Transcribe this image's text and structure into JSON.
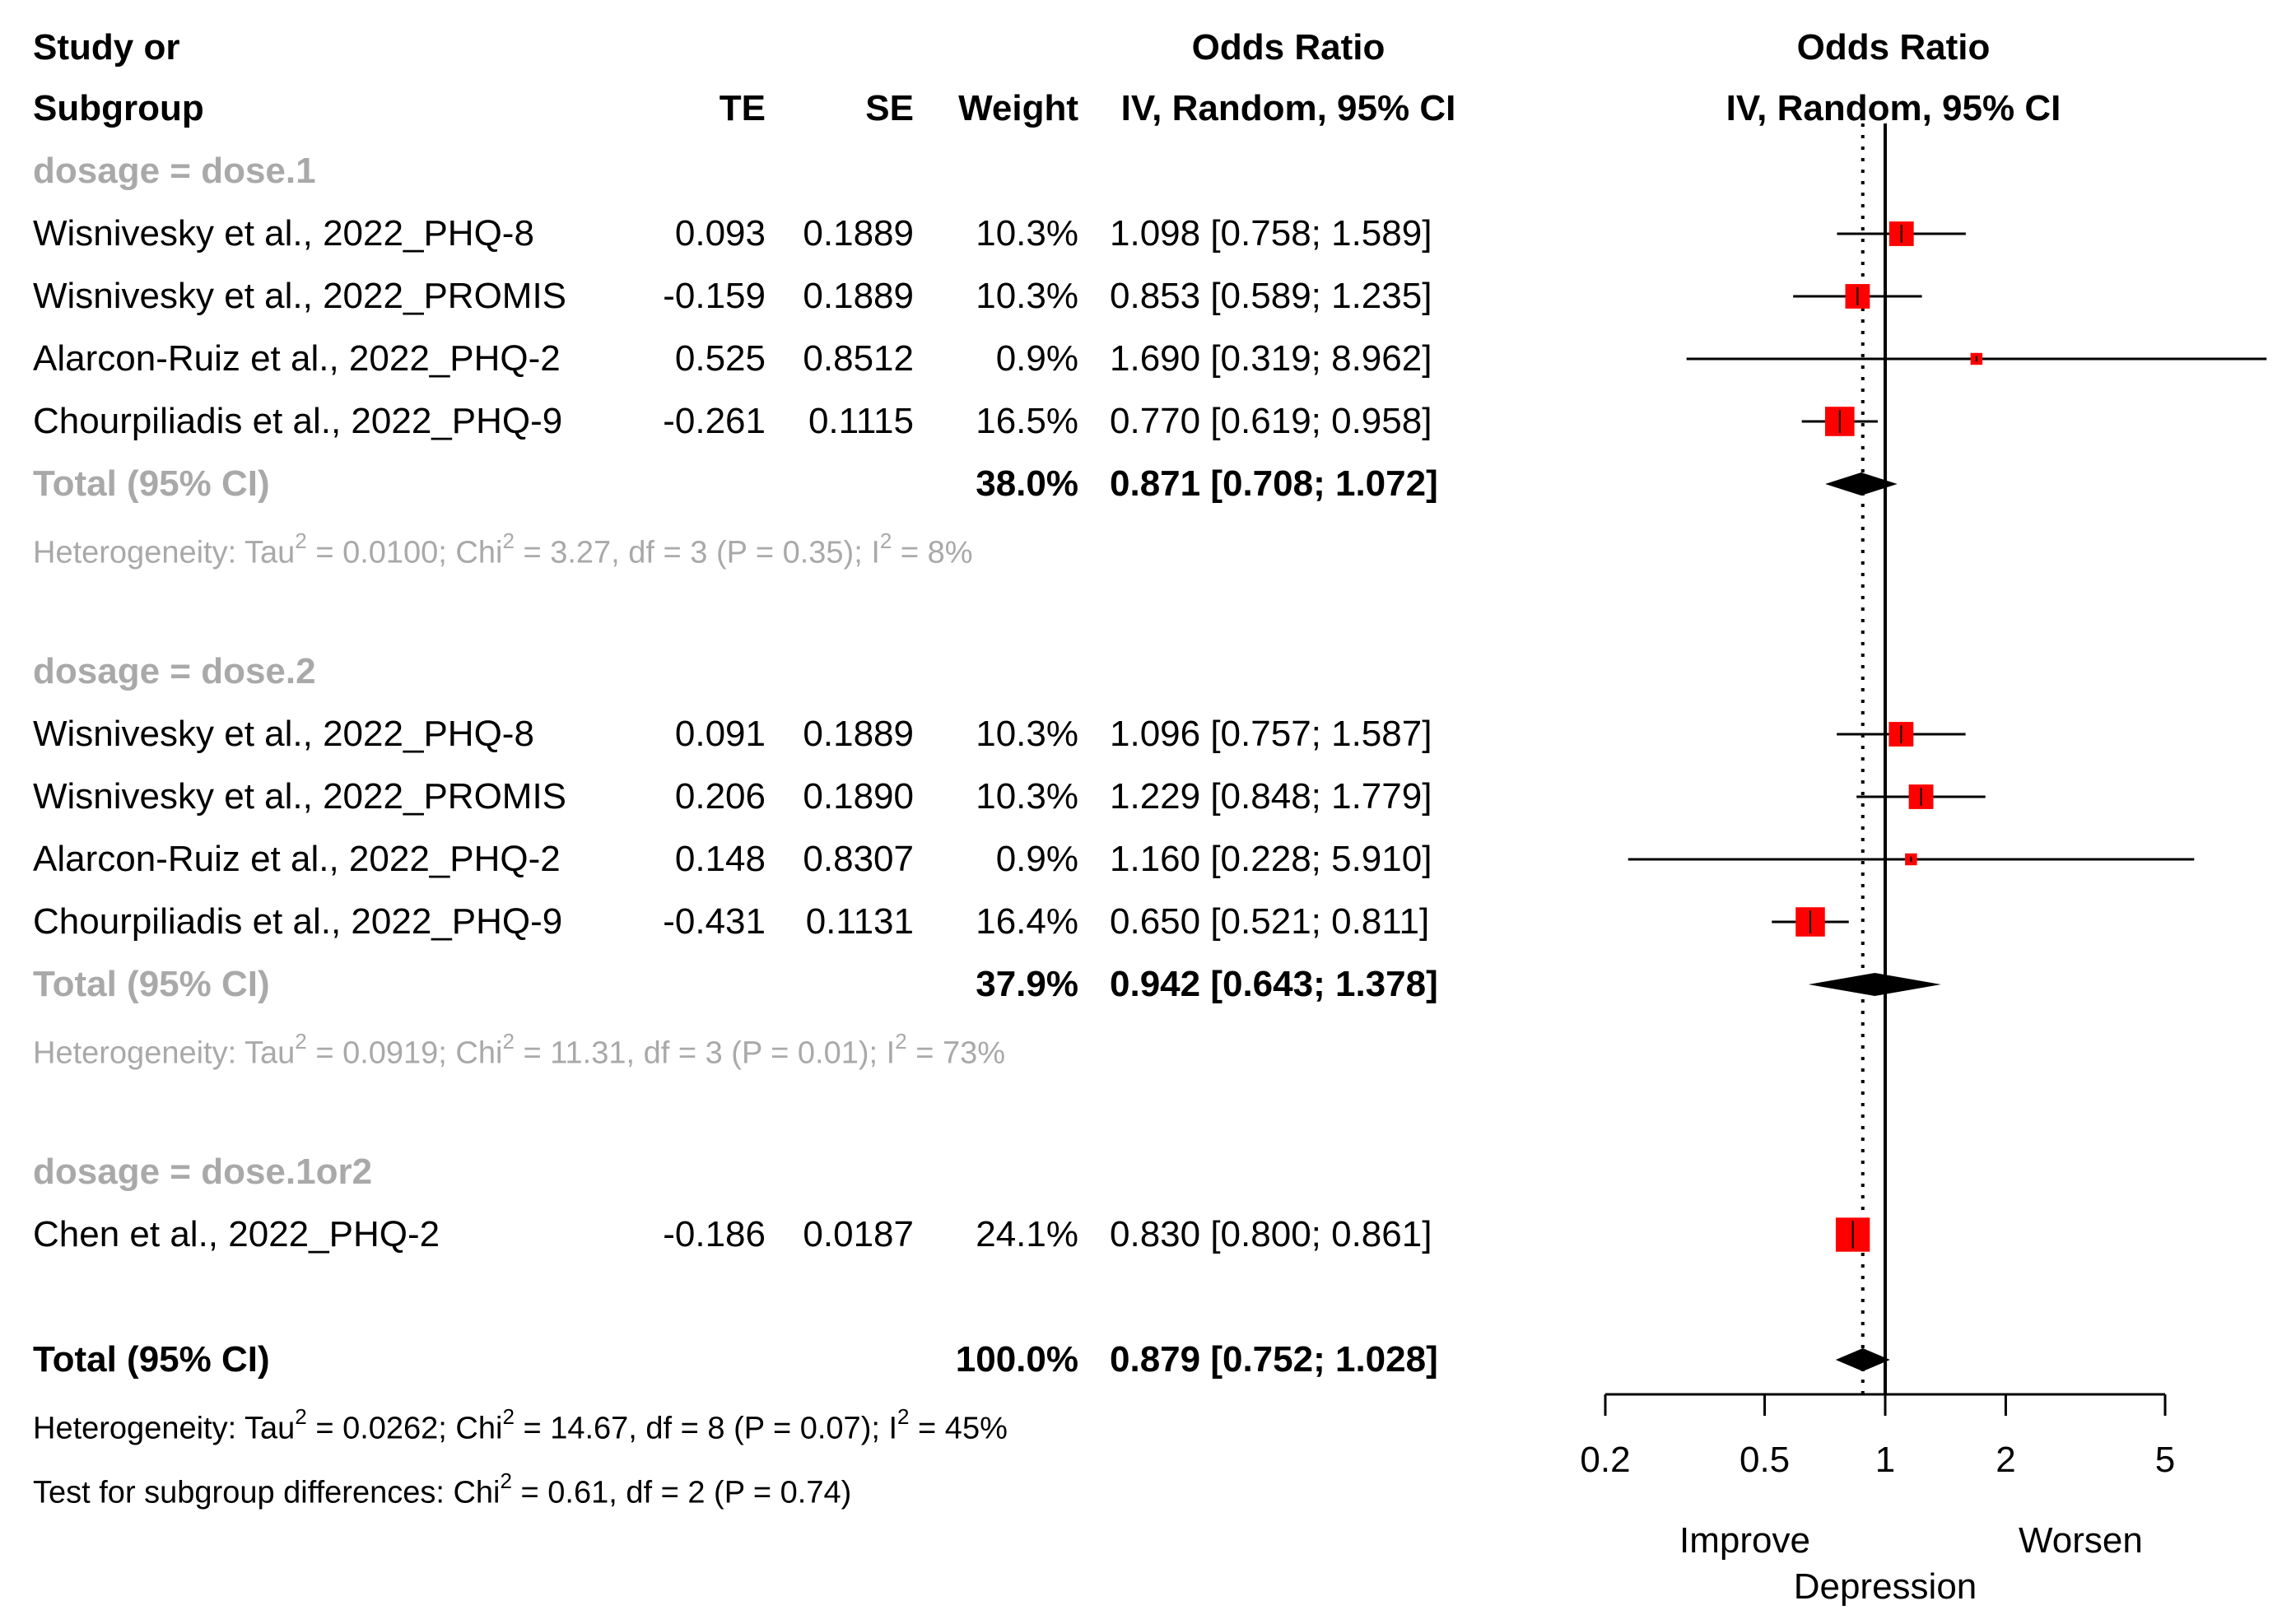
{
  "header": {
    "study_line1": "Study or",
    "study_line2": "Subgroup",
    "te": "TE",
    "se": "SE",
    "weight": "Weight",
    "or_line1": "Odds Ratio",
    "or_line2": "IV, Random, 95% CI",
    "plot_line1": "Odds Ratio",
    "plot_line2": "IV, Random, 95% CI"
  },
  "groups": [
    {
      "label": "dosage = dose.1",
      "studies": [
        {
          "name": "Wisnivesky et al., 2022_PHQ-8",
          "te": "0.093",
          "se": "0.1889",
          "weight": "10.3%",
          "ci": "1.098 [0.758; 1.589]"
        },
        {
          "name": "Wisnivesky et al., 2022_PROMIS",
          "te": "-0.159",
          "se": "0.1889",
          "weight": "10.3%",
          "ci": "0.853 [0.589; 1.235]"
        },
        {
          "name": "Alarcon-Ruiz et al., 2022_PHQ-2",
          "te": "0.525",
          "se": "0.8512",
          "weight": "0.9%",
          "ci": "1.690 [0.319; 8.962]"
        },
        {
          "name": "Chourpiliadis et al., 2022_PHQ-9",
          "te": "-0.261",
          "se": "0.1115",
          "weight": "16.5%",
          "ci": "0.770 [0.619; 0.958]"
        }
      ],
      "total": {
        "label": "Total (95% CI)",
        "weight": "38.0%",
        "ci": "0.871 [0.708; 1.072]"
      },
      "het": {
        "p1": "Heterogeneity: Tau",
        "s1": "2",
        "p2": " = 0.0100; Chi",
        "s2": "2",
        "p3": " = 3.27, df = 3 (P = 0.35); I",
        "s3": "2",
        "p4": " = 8%"
      }
    },
    {
      "label": "dosage = dose.2",
      "studies": [
        {
          "name": "Wisnivesky et al., 2022_PHQ-8",
          "te": "0.091",
          "se": "0.1889",
          "weight": "10.3%",
          "ci": "1.096 [0.757; 1.587]"
        },
        {
          "name": "Wisnivesky et al., 2022_PROMIS",
          "te": "0.206",
          "se": "0.1890",
          "weight": "10.3%",
          "ci": "1.229 [0.848; 1.779]"
        },
        {
          "name": "Alarcon-Ruiz et al., 2022_PHQ-2",
          "te": "0.148",
          "se": "0.8307",
          "weight": "0.9%",
          "ci": "1.160 [0.228; 5.910]"
        },
        {
          "name": "Chourpiliadis et al., 2022_PHQ-9",
          "te": "-0.431",
          "se": "0.1131",
          "weight": "16.4%",
          "ci": "0.650 [0.521; 0.811]"
        }
      ],
      "total": {
        "label": "Total (95% CI)",
        "weight": "37.9%",
        "ci": "0.942 [0.643; 1.378]"
      },
      "het": {
        "p1": "Heterogeneity: Tau",
        "s1": "2",
        "p2": " = 0.0919; Chi",
        "s2": "2",
        "p3": " = 11.31, df = 3 (P = 0.01); I",
        "s3": "2",
        "p4": " = 73%"
      }
    },
    {
      "label": "dosage = dose.1or2",
      "studies": [
        {
          "name": "Chen et al., 2022_PHQ-2",
          "te": "-0.186",
          "se": "0.0187",
          "weight": "24.1%",
          "ci": "0.830 [0.800; 0.861]"
        }
      ]
    }
  ],
  "overall": {
    "label": "Total (95% CI)",
    "weight": "100.0%",
    "ci": "0.879 [0.752; 1.028]",
    "het": {
      "p1": "Heterogeneity: Tau",
      "s1": "2",
      "p2": " = 0.0262; Chi",
      "s2": "2",
      "p3": " = 14.67, df = 8 (P = 0.07); I",
      "s3": "2",
      "p4": " = 45%"
    },
    "test": {
      "p1": "Test for subgroup differences: Chi",
      "s1": "2",
      "p2": " = 0.61, df = 2 (P = 0.74)"
    }
  },
  "axis": {
    "ticks": [
      "0.2",
      "0.5",
      "1",
      "2",
      "5"
    ],
    "left_label": "Improve",
    "right_label": "Worsen",
    "title": "Depression"
  },
  "chart_data": {
    "type": "forest",
    "scale": "log",
    "xlim": [
      0.2,
      5
    ],
    "null_value": 1,
    "pooled_estimate": 0.879,
    "studies": [
      {
        "group": "dose.1",
        "or": 1.098,
        "lo": 0.758,
        "hi": 1.589,
        "weight": 10.3
      },
      {
        "group": "dose.1",
        "or": 0.853,
        "lo": 0.589,
        "hi": 1.235,
        "weight": 10.3
      },
      {
        "group": "dose.1",
        "or": 1.69,
        "lo": 0.319,
        "hi": 8.962,
        "weight": 0.9
      },
      {
        "group": "dose.1",
        "or": 0.77,
        "lo": 0.619,
        "hi": 0.958,
        "weight": 16.5
      },
      {
        "group": "dose.2",
        "or": 1.096,
        "lo": 0.757,
        "hi": 1.587,
        "weight": 10.3
      },
      {
        "group": "dose.2",
        "or": 1.229,
        "lo": 0.848,
        "hi": 1.779,
        "weight": 10.3
      },
      {
        "group": "dose.2",
        "or": 1.16,
        "lo": 0.228,
        "hi": 5.91,
        "weight": 0.9
      },
      {
        "group": "dose.2",
        "or": 0.65,
        "lo": 0.521,
        "hi": 0.811,
        "weight": 16.4
      },
      {
        "group": "dose.1or2",
        "or": 0.83,
        "lo": 0.8,
        "hi": 0.861,
        "weight": 24.1
      }
    ],
    "summaries": [
      {
        "group": "dose.1",
        "or": 0.871,
        "lo": 0.708,
        "hi": 1.072
      },
      {
        "group": "dose.2",
        "or": 0.942,
        "lo": 0.643,
        "hi": 1.378
      },
      {
        "group": "overall",
        "or": 0.879,
        "lo": 0.752,
        "hi": 1.028
      }
    ],
    "colors": {
      "square": "#ff0000",
      "diamond": "#000000",
      "group_text": "#a9a9a9"
    }
  }
}
